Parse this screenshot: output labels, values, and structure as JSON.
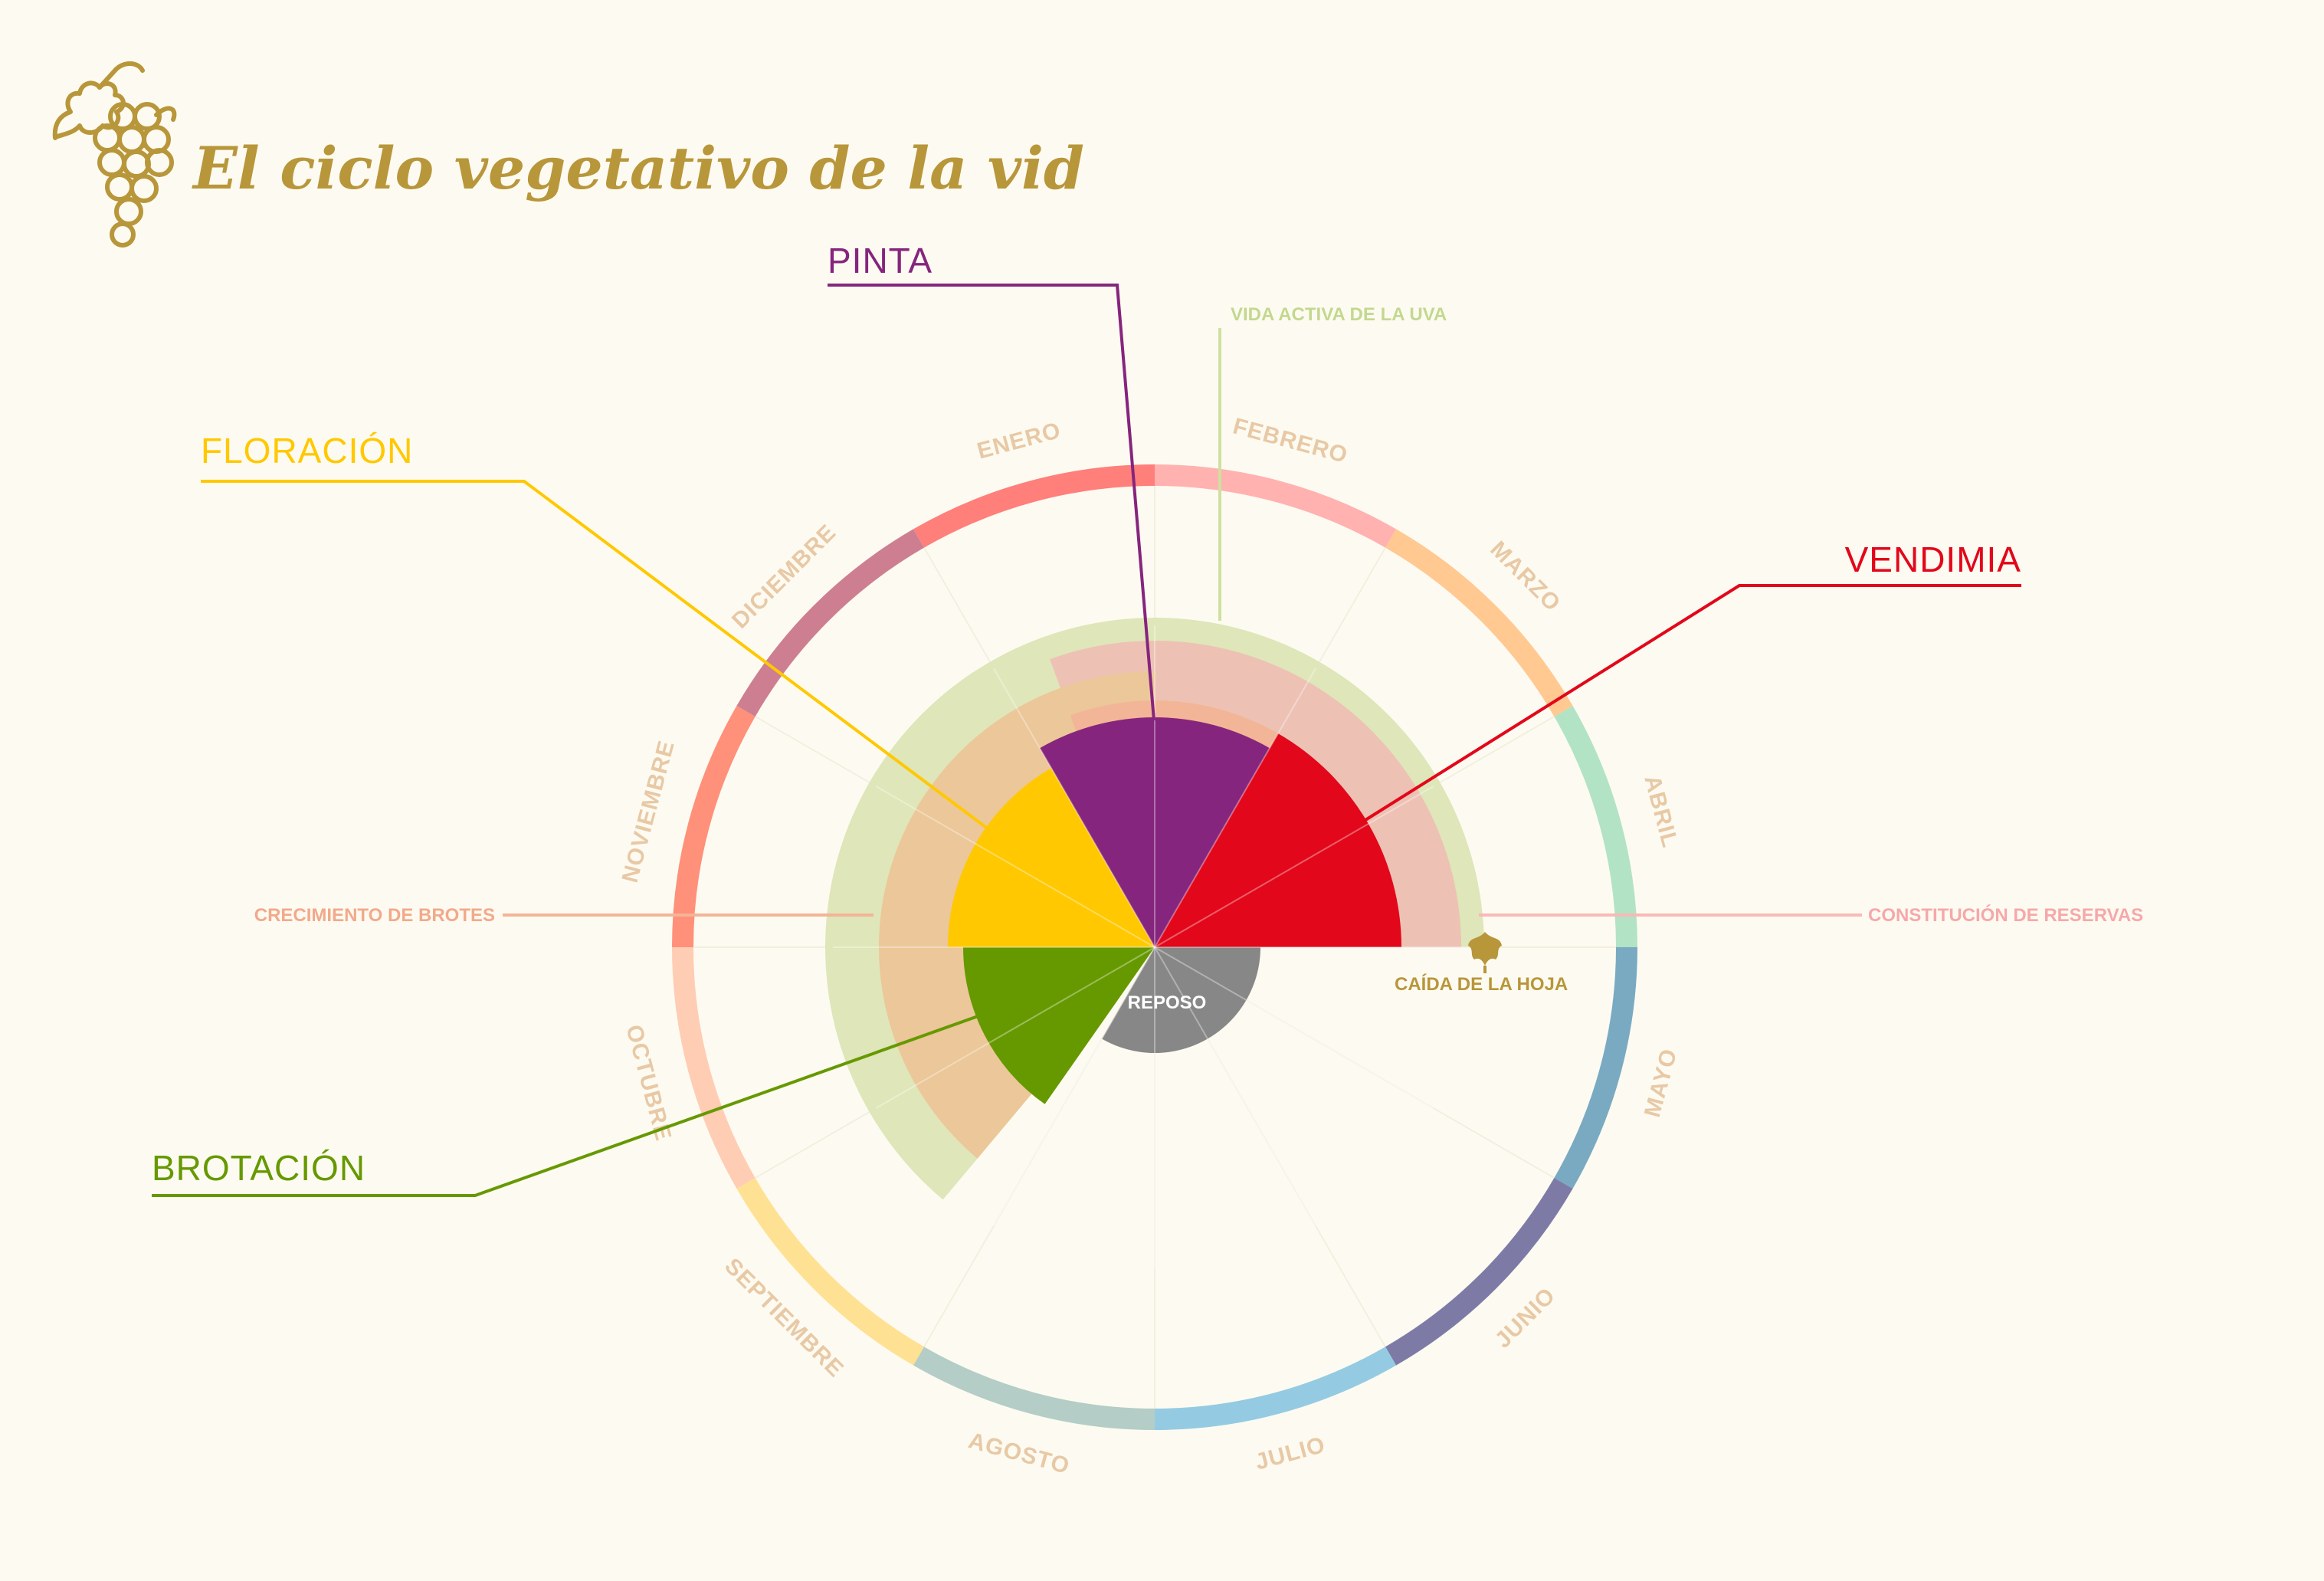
{
  "title": "El ciclo vegetativo de la vid",
  "icons": {
    "logo": "grape-bunch-icon",
    "leaf": "vine-leaf-icon"
  },
  "colors": {
    "background": "#fdfbf1",
    "title": "#b8963a",
    "month_label": "#e8c9a6",
    "pinta": "#86257d",
    "vendimia": "#e2071a",
    "floracion": "#ffc800",
    "brotacion": "#669900",
    "reposo": "#878787",
    "vida_activa": "#dfe6b9",
    "crecimiento": "#ecc799",
    "reservas": "#edc2b4",
    "caida_hoja": "#b8963a"
  },
  "months": [
    {
      "label": "ENERO",
      "color": "#ff7f7b"
    },
    {
      "label": "FEBRERO",
      "color": "#ffb2b0"
    },
    {
      "label": "MARZO",
      "color": "#ffc991"
    },
    {
      "label": "ABRIL",
      "color": "#b2e3c4"
    },
    {
      "label": "MAYO",
      "color": "#79aac2"
    },
    {
      "label": "JUNIO",
      "color": "#7d7ba6"
    },
    {
      "label": "JULIO",
      "color": "#94cbe2"
    },
    {
      "label": "AGOSTO",
      "color": "#b4cdc6"
    },
    {
      "label": "SEPTIEMBRE",
      "color": "#ffe193"
    },
    {
      "label": "OCTUBRE",
      "color": "#ffcdb4"
    },
    {
      "label": "NOVIEMBRE",
      "color": "#ff907a"
    },
    {
      "label": "DICIEMBRE",
      "color": "#cd7f91"
    }
  ],
  "phases": {
    "pinta": "PINTA",
    "floracion": "FLORACIÓN",
    "vendimia": "VENDIMIA",
    "brotacion": "BROTACIÓN",
    "reposo": "REPOSO"
  },
  "bands": {
    "vida_activa": "VIDA ACTIVA DE LA UVA",
    "crecimiento": "CRECIMIENTO DE BROTES",
    "reservas": "CONSTITUCIÓN DE RESERVAS",
    "caida_hoja": "CAÍDA DE LA HOJA"
  }
}
